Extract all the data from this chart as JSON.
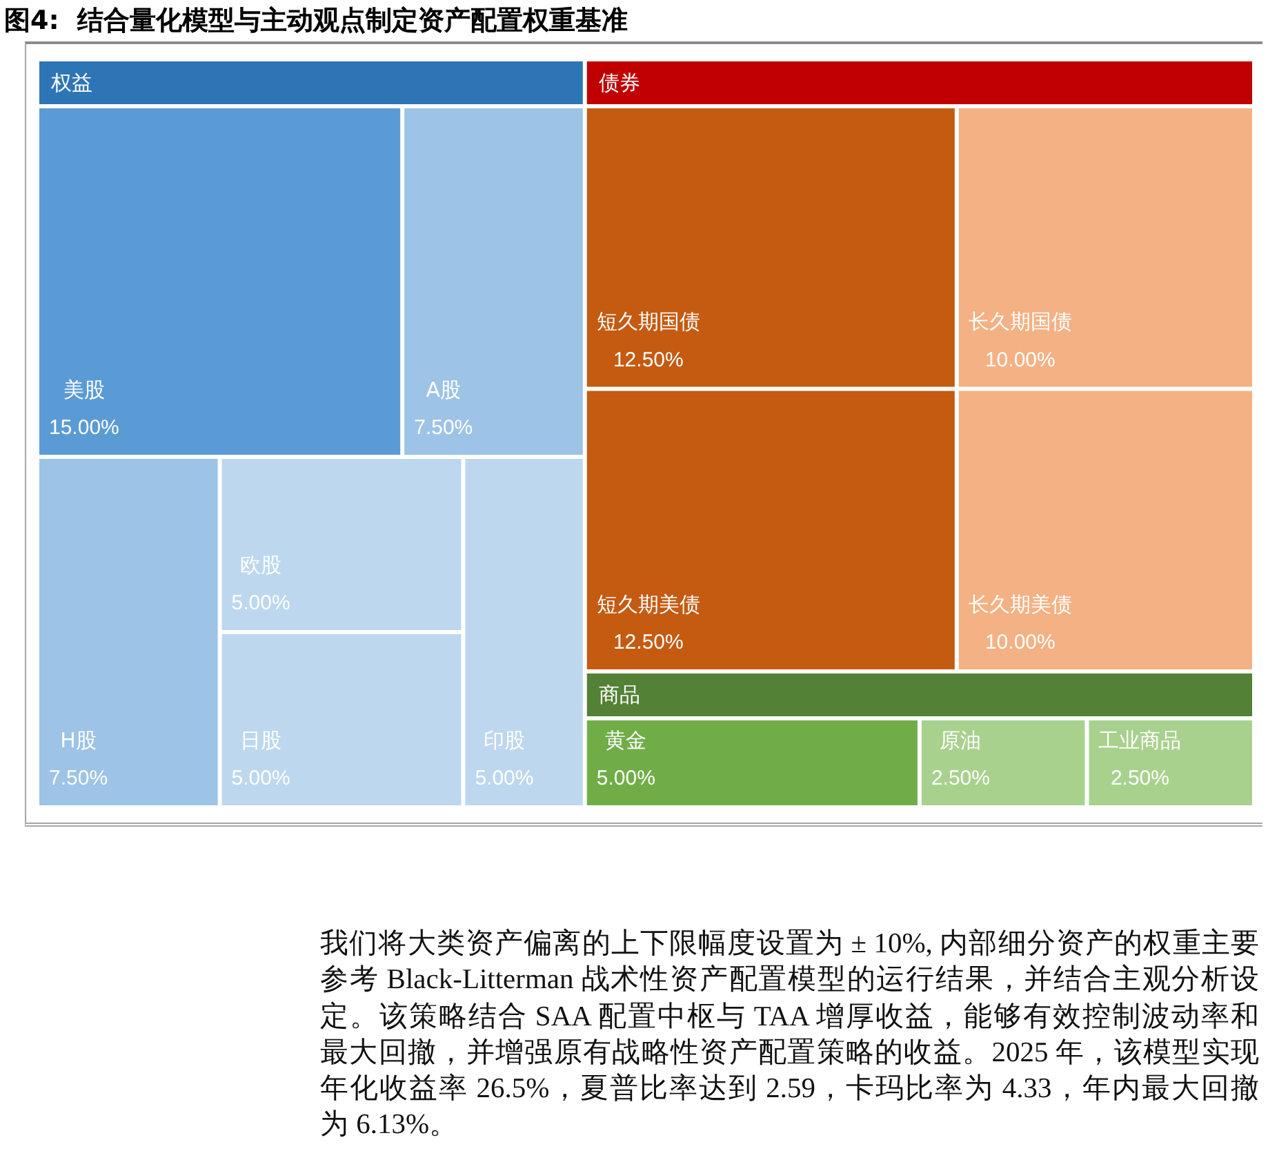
{
  "chart_data": {
    "type": "other",
    "title": "图4:  结合量化模型与主动观点制定资产配置权重基准",
    "categories": [
      "美股",
      "A股",
      "H股",
      "欧股",
      "日股",
      "印股",
      "短久期国债",
      "短久期美债",
      "长久期国债",
      "长久期美债",
      "黄金",
      "原油",
      "工业商品"
    ],
    "series": [
      {
        "name": "权益",
        "color": "#2e75b6",
        "values": [
          15,
          7.5,
          7.5,
          5,
          5,
          5,
          null,
          null,
          null,
          null,
          null,
          null,
          null
        ],
        "value_labels": [
          "15.00%",
          "7.50%",
          "7.50%",
          "5.00%",
          "5.00%",
          "5.00%",
          null,
          null,
          null,
          null,
          null,
          null,
          null
        ],
        "colors": [
          "#5b9bd5",
          "#9dc3e6",
          "#9dc3e6",
          "#bdd7ee",
          "#bdd7ee",
          "#bdd7ee",
          null,
          null,
          null,
          null,
          null,
          null,
          null
        ]
      },
      {
        "name": "债券",
        "color": "#c00000",
        "values": [
          null,
          null,
          null,
          null,
          null,
          null,
          12.5,
          12.5,
          10,
          10,
          null,
          null,
          null
        ],
        "value_labels": [
          null,
          null,
          null,
          null,
          null,
          null,
          "12.50%",
          "12.50%",
          "10.00%",
          "10.00%",
          null,
          null,
          null
        ],
        "colors": [
          null,
          null,
          null,
          null,
          null,
          null,
          "#c55a11",
          "#c55a11",
          "#f4b183",
          "#f4b183",
          null,
          null,
          null
        ]
      },
      {
        "name": "商品",
        "color": "#538135",
        "values": [
          null,
          null,
          null,
          null,
          null,
          null,
          null,
          null,
          null,
          null,
          5,
          2.5,
          2.5
        ],
        "value_labels": [
          null,
          null,
          null,
          null,
          null,
          null,
          null,
          null,
          null,
          null,
          "5.00%",
          "2.50%",
          "2.50%"
        ],
        "colors": [
          null,
          null,
          null,
          null,
          null,
          null,
          null,
          null,
          null,
          null,
          "#70ad47",
          "#a9d18e",
          "#a9d18e"
        ]
      }
    ],
    "annotations": [
      "我们将大类资产偏离的上下限幅度设置为 ± 10%, 内部细分资产的权重主要参考 Black-Litterman 战术性资产配置模型的运行结果，并结合主观分析设定。该策略结合 SAA 配置中枢与 TAA 增厚收益，能够有效控制波动率和最大回撤，并增强原有战略性资产配置策略的收益。2025 年，该模型实现年化收益率 26.5%，夏普比率达到 2.59，卡玛比率为 4.33，年内最大回撤为 6.13%。"
    ]
  }
}
